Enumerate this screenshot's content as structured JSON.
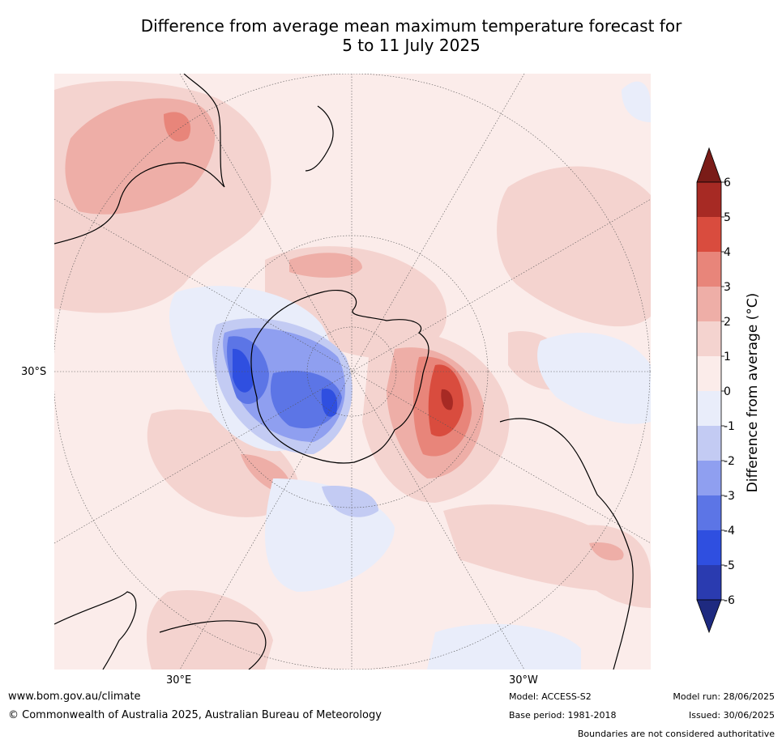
{
  "title_line1": "Difference from average mean maximum temperature forecast for",
  "title_line2": "5 to 11 July 2025",
  "map_labels": {
    "lat_30s": "30°S",
    "lon_30e": "30°E",
    "lon_30w": "30°W"
  },
  "colorbar": {
    "label": "Difference from average (°C)",
    "ticks": [
      "6",
      "5",
      "4",
      "3",
      "2",
      "1",
      "0",
      "-1",
      "-2",
      "-3",
      "-4",
      "-5",
      "-6"
    ],
    "colors": [
      "#7a1c18",
      "#a72a24",
      "#d94c3e",
      "#e8857a",
      "#eeaea7",
      "#f4d3cf",
      "#fbecea",
      "#e9edfa",
      "#c3cbf3",
      "#8f9ff0",
      "#5c75e6",
      "#2f4fe0",
      "#2a3bb0",
      "#1e2a80"
    ]
  },
  "footer": {
    "website": "www.bom.gov.au/climate",
    "copyright": "© Commonwealth of Australia 2025, Australian Bureau of Meteorology",
    "model": "Model: ACCESS-S2",
    "base_period": "Base period: 1981-2018",
    "model_run": "Model run: 28/06/2025",
    "issued": "Issued: 30/06/2025",
    "disclaimer": "Boundaries are not considered authoritative"
  }
}
